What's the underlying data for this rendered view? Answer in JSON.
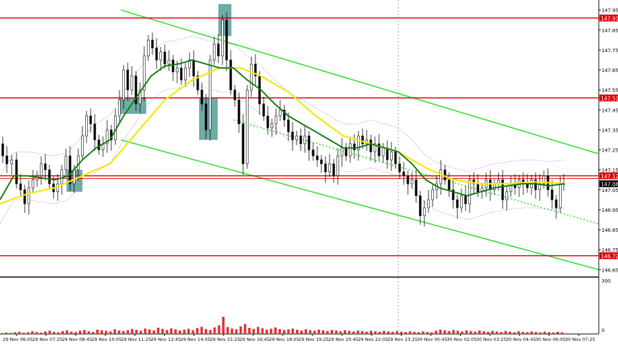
{
  "chart_data": {
    "type": "candlestick",
    "title": "",
    "ylim": [
      146.62,
      147.99
    ],
    "price_ticks": [
      147.95,
      147.85,
      147.75,
      147.65,
      147.55,
      147.45,
      147.35,
      147.25,
      147.15,
      147.05,
      146.95,
      146.85,
      146.75,
      146.65
    ],
    "horizontal_levels": [
      {
        "label": "147.91",
        "value": 147.91,
        "color": "#e00000"
      },
      {
        "label": "147.51",
        "value": 147.51,
        "color": "#e00000"
      },
      {
        "label": "147.12",
        "value": 147.12,
        "color": "#e00000"
      },
      {
        "label": "146.72",
        "value": 146.72,
        "color": "#e00000"
      }
    ],
    "current_price": {
      "label": "147.08",
      "value": 147.08
    },
    "volume_scale": {
      "label_top": "300",
      "label_bottom": "0",
      "max": 300
    },
    "time_labels": [
      "29 Nov 06:05",
      "29 Nov 07:25",
      "29 Nov 08:45",
      "29 Nov 10:05",
      "29 Nov 11:25",
      "29 Nov 12:45",
      "29 Nov 14:05",
      "29 Nov 15:25",
      "29 Nov 16:45",
      "29 Nov 18:05",
      "29 Nov 19:25",
      "29 Nov 20:45",
      "29 Nov 22:05",
      "29 Nov 23:25",
      "30 Nov 00:45",
      "30 Nov 02:05",
      "30 Nov 03:25",
      "30 Nov 04:45",
      "30 Nov 06:05",
      "30 Nov 07:25"
    ],
    "close_path": [
      [
        0,
        147.28
      ],
      [
        6,
        147.22
      ],
      [
        12,
        147.18
      ],
      [
        20,
        147.2
      ],
      [
        26,
        147.08
      ],
      [
        32,
        147.05
      ],
      [
        38,
        146.98
      ],
      [
        44,
        147.06
      ],
      [
        50,
        147.1
      ],
      [
        56,
        147.12
      ],
      [
        62,
        147.18
      ],
      [
        68,
        147.15
      ],
      [
        74,
        147.08
      ],
      [
        80,
        147.04
      ],
      [
        86,
        147.08
      ],
      [
        92,
        147.15
      ],
      [
        98,
        147.22
      ],
      [
        104,
        147.08
      ],
      [
        110,
        147.15
      ],
      [
        116,
        147.22
      ],
      [
        122,
        147.32
      ],
      [
        128,
        147.42
      ],
      [
        134,
        147.38
      ],
      [
        140,
        147.3
      ],
      [
        146,
        147.25
      ],
      [
        152,
        147.28
      ],
      [
        158,
        147.35
      ],
      [
        164,
        147.3
      ],
      [
        170,
        147.42
      ],
      [
        176,
        147.5
      ],
      [
        182,
        147.65
      ],
      [
        188,
        147.55
      ],
      [
        194,
        147.62
      ],
      [
        200,
        147.48
      ],
      [
        206,
        147.55
      ],
      [
        212,
        147.72
      ],
      [
        218,
        147.8
      ],
      [
        224,
        147.76
      ],
      [
        230,
        147.7
      ],
      [
        236,
        147.74
      ],
      [
        242,
        147.68
      ],
      [
        248,
        147.7
      ],
      [
        254,
        147.64
      ],
      [
        260,
        147.66
      ],
      [
        266,
        147.6
      ],
      [
        272,
        147.66
      ],
      [
        278,
        147.7
      ],
      [
        284,
        147.62
      ],
      [
        290,
        147.55
      ],
      [
        296,
        147.48
      ],
      [
        302,
        147.35
      ],
      [
        308,
        147.7
      ],
      [
        314,
        147.78
      ],
      [
        320,
        147.72
      ],
      [
        326,
        147.9
      ],
      [
        332,
        147.7
      ],
      [
        338,
        147.55
      ],
      [
        344,
        147.5
      ],
      [
        350,
        147.38
      ],
      [
        356,
        147.18
      ],
      [
        362,
        147.55
      ],
      [
        368,
        147.68
      ],
      [
        374,
        147.62
      ],
      [
        380,
        147.48
      ],
      [
        386,
        147.42
      ],
      [
        392,
        147.36
      ],
      [
        398,
        147.38
      ],
      [
        404,
        147.42
      ],
      [
        410,
        147.45
      ],
      [
        416,
        147.4
      ],
      [
        422,
        147.34
      ],
      [
        428,
        147.3
      ],
      [
        434,
        147.32
      ],
      [
        440,
        147.28
      ],
      [
        446,
        147.32
      ],
      [
        452,
        147.25
      ],
      [
        458,
        147.22
      ],
      [
        464,
        147.2
      ],
      [
        470,
        147.18
      ],
      [
        476,
        147.14
      ],
      [
        482,
        147.18
      ],
      [
        488,
        147.12
      ],
      [
        494,
        147.22
      ],
      [
        500,
        147.26
      ],
      [
        506,
        147.22
      ],
      [
        512,
        147.28
      ],
      [
        518,
        147.25
      ],
      [
        524,
        147.32
      ],
      [
        530,
        147.28
      ],
      [
        536,
        147.3
      ],
      [
        542,
        147.24
      ],
      [
        548,
        147.28
      ],
      [
        554,
        147.22
      ],
      [
        560,
        147.26
      ],
      [
        566,
        147.2
      ],
      [
        572,
        147.24
      ],
      [
        578,
        147.18
      ],
      [
        584,
        147.14
      ],
      [
        590,
        147.12
      ],
      [
        596,
        147.08
      ],
      [
        602,
        147.1
      ],
      [
        608,
        147.02
      ],
      [
        614,
        146.92
      ],
      [
        620,
        146.96
      ],
      [
        626,
        147.0
      ],
      [
        632,
        147.05
      ],
      [
        638,
        147.08
      ],
      [
        644,
        147.15
      ],
      [
        650,
        147.1
      ],
      [
        656,
        147.05
      ],
      [
        662,
        147.0
      ],
      [
        668,
        146.96
      ],
      [
        674,
        147.02
      ],
      [
        680,
        146.98
      ],
      [
        686,
        147.1
      ],
      [
        692,
        147.08
      ],
      [
        698,
        147.04
      ],
      [
        704,
        147.06
      ],
      [
        710,
        147.1
      ],
      [
        716,
        147.05
      ],
      [
        722,
        147.08
      ],
      [
        728,
        147.1
      ],
      [
        734,
        147.0
      ],
      [
        740,
        147.04
      ],
      [
        746,
        147.08
      ],
      [
        752,
        147.06
      ],
      [
        758,
        147.1
      ],
      [
        764,
        147.08
      ],
      [
        770,
        147.06
      ],
      [
        776,
        147.1
      ],
      [
        782,
        147.05
      ],
      [
        788,
        147.08
      ],
      [
        794,
        147.12
      ],
      [
        800,
        147.05
      ],
      [
        806,
        147.0
      ],
      [
        812,
        146.96
      ],
      [
        818,
        147.08
      ],
      [
        822,
        147.08
      ]
    ],
    "ema_green": [
      [
        0,
        147.0
      ],
      [
        20,
        147.12
      ],
      [
        40,
        147.12
      ],
      [
        60,
        147.11
      ],
      [
        80,
        147.1
      ],
      [
        100,
        147.12
      ],
      [
        120,
        147.2
      ],
      [
        140,
        147.26
      ],
      [
        160,
        147.3
      ],
      [
        180,
        147.42
      ],
      [
        200,
        147.52
      ],
      [
        220,
        147.62
      ],
      [
        240,
        147.67
      ],
      [
        260,
        147.68
      ],
      [
        280,
        147.7
      ],
      [
        300,
        147.68
      ],
      [
        320,
        147.66
      ],
      [
        340,
        147.66
      ],
      [
        360,
        147.6
      ],
      [
        380,
        147.55
      ],
      [
        400,
        147.48
      ],
      [
        420,
        147.42
      ],
      [
        440,
        147.38
      ],
      [
        460,
        147.34
      ],
      [
        480,
        147.3
      ],
      [
        500,
        147.26
      ],
      [
        520,
        147.26
      ],
      [
        540,
        147.28
      ],
      [
        560,
        147.26
      ],
      [
        580,
        147.24
      ],
      [
        600,
        147.18
      ],
      [
        620,
        147.1
      ],
      [
        640,
        147.06
      ],
      [
        660,
        147.04
      ],
      [
        680,
        147.02
      ],
      [
        700,
        147.04
      ],
      [
        720,
        147.06
      ],
      [
        740,
        147.07
      ],
      [
        760,
        147.08
      ],
      [
        780,
        147.08
      ],
      [
        800,
        147.07
      ],
      [
        822,
        147.08
      ]
    ],
    "ema_yellow": [
      [
        0,
        146.98
      ],
      [
        40,
        147.03
      ],
      [
        80,
        147.06
      ],
      [
        120,
        147.12
      ],
      [
        160,
        147.18
      ],
      [
        200,
        147.34
      ],
      [
        240,
        147.5
      ],
      [
        280,
        147.6
      ],
      [
        320,
        147.66
      ],
      [
        350,
        147.66
      ],
      [
        380,
        147.62
      ],
      [
        420,
        147.54
      ],
      [
        460,
        147.42
      ],
      [
        500,
        147.32
      ],
      [
        540,
        147.28
      ],
      [
        580,
        147.24
      ],
      [
        620,
        147.16
      ],
      [
        660,
        147.1
      ],
      [
        700,
        147.08
      ],
      [
        740,
        147.08
      ],
      [
        780,
        147.09
      ],
      [
        822,
        147.08
      ]
    ],
    "channel_upper": [
      [
        176,
        147.95
      ],
      [
        872,
        147.23
      ]
    ],
    "channel_lower": [
      [
        176,
        147.3
      ],
      [
        872,
        146.65
      ]
    ],
    "channel_mid": [
      [
        340,
        147.4
      ],
      [
        872,
        146.88
      ]
    ],
    "highlight_boxes": [
      {
        "x0": 97,
        "x1": 120,
        "p_top": 147.15,
        "p_bottom": 147.04
      },
      {
        "x0": 175,
        "x1": 213,
        "p_top": 147.51,
        "p_bottom": 147.43
      },
      {
        "x0": 290,
        "x1": 317,
        "p_top": 147.51,
        "p_bottom": 147.3
      },
      {
        "x0": 318,
        "x1": 337,
        "p_top": 147.98,
        "p_bottom": 147.82
      }
    ],
    "volume": [
      5,
      8,
      6,
      10,
      12,
      7,
      9,
      15,
      11,
      8,
      14,
      18,
      12,
      9,
      16,
      20,
      13,
      10,
      18,
      22,
      15,
      11,
      24,
      20,
      17,
      14,
      26,
      19,
      16,
      21,
      28,
      23,
      18,
      30,
      25,
      20,
      35,
      28,
      22,
      31,
      26,
      19,
      24,
      29,
      21,
      33,
      40,
      27,
      22,
      36,
      48,
      95,
      38,
      30,
      26,
      42,
      55,
      34,
      28,
      39,
      31,
      24,
      29,
      36,
      27,
      22,
      25,
      30,
      23,
      19,
      26,
      21,
      18,
      24,
      20,
      16,
      22,
      19,
      15,
      21,
      17,
      14,
      19,
      16,
      13,
      18,
      15,
      12,
      17,
      14,
      12,
      16,
      13,
      11,
      15,
      12,
      10,
      14,
      11,
      9,
      18,
      24,
      20,
      16,
      22,
      18,
      14,
      20,
      16,
      13,
      19,
      15,
      12,
      17,
      14,
      11,
      16,
      13,
      10,
      15,
      12,
      10,
      14,
      11,
      9,
      13,
      10,
      8,
      12,
      9
    ]
  }
}
